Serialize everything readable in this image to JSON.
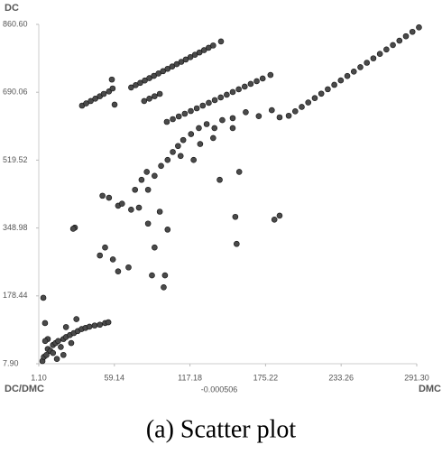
{
  "chart_data": {
    "type": "scatter",
    "y_label": "DC",
    "x_label_left": "DC/DMC",
    "x_label": "DMC",
    "x_axis_note": "-0.000506",
    "caption": "(a) Scatter plot",
    "color": "#4a4a4a",
    "edge_color": "#111111",
    "xlim": [
      1.1,
      291.3
    ],
    "xticks": [
      {
        "value": 1.1,
        "label": "1.10"
      },
      {
        "value": 59.14,
        "label": "59.14"
      },
      {
        "value": 117.18,
        "label": "117.18"
      },
      {
        "value": 175.22,
        "label": "175.22"
      },
      {
        "value": 233.26,
        "label": "233.26"
      },
      {
        "value": 291.3,
        "label": "291.30"
      }
    ],
    "ylim": [
      7.9,
      860.6
    ],
    "yticks": [
      {
        "value": 7.9,
        "label": "7.90"
      },
      {
        "value": 178.44,
        "label": "178.44"
      },
      {
        "value": 348.98,
        "label": "348.98"
      },
      {
        "value": 519.52,
        "label": "519.52"
      },
      {
        "value": 690.06,
        "label": "690.06"
      },
      {
        "value": 860.6,
        "label": "860.60"
      }
    ],
    "x": [
      34.3,
      37.5,
      41,
      44.5,
      48,
      51,
      55,
      57.8,
      57.2,
      59.3,
      72,
      75.5,
      79,
      82.5,
      86,
      89.5,
      93,
      96.5,
      100,
      103.5,
      107,
      110.5,
      114,
      117.5,
      121,
      124.5,
      128,
      131.5,
      135,
      141,
      82,
      86,
      90,
      94,
      99.4,
      104,
      108.6,
      113.2,
      117.8,
      122.4,
      127,
      131.6,
      136.2,
      140.8,
      145.4,
      150,
      154.6,
      159.2,
      163.8,
      168.4,
      173,
      179,
      193,
      198,
      203,
      208,
      213,
      218,
      223,
      228,
      233,
      238,
      243,
      248,
      253,
      258,
      263,
      268,
      273,
      278,
      283,
      288,
      293,
      75,
      80,
      84,
      90,
      95,
      100,
      104,
      108,
      112,
      118,
      124,
      130,
      136,
      142,
      150,
      160,
      170,
      180,
      186,
      85,
      110,
      125,
      135,
      150,
      50,
      55,
      62,
      65,
      72,
      78,
      85,
      100,
      94,
      48,
      52,
      58,
      70,
      88,
      98,
      97,
      152,
      153,
      182,
      186,
      28.8,
      27.5,
      4.6,
      5.9,
      120,
      155,
      140,
      90,
      62,
      3.9,
      5,
      7,
      8,
      10,
      12,
      14,
      16,
      18,
      20,
      22,
      25,
      28,
      31,
      34,
      37,
      40,
      44,
      48,
      52,
      54.5,
      8,
      12,
      20,
      15,
      26,
      30,
      22,
      6
    ],
    "values": [
      656.5,
      662,
      668,
      674,
      680,
      686,
      692,
      699.6,
      722,
      659,
      702,
      707.9,
      713.7,
      719.6,
      725.5,
      731.3,
      737.2,
      743,
      748.9,
      754.8,
      760.6,
      766.5,
      772.4,
      778.2,
      784.2,
      790,
      795.9,
      801.8,
      807.6,
      817.7,
      668,
      674,
      680,
      686,
      615.7,
      622.5,
      629.3,
      636.1,
      642.9,
      649.7,
      656.5,
      663.4,
      670.2,
      677,
      683.8,
      690.6,
      697.4,
      704.2,
      711,
      717.8,
      724.6,
      733.5,
      631,
      642.1,
      653.2,
      664.3,
      675.4,
      686.5,
      697.6,
      708.7,
      719.8,
      730.9,
      742,
      753.1,
      764.2,
      775.3,
      786.4,
      797.5,
      808.6,
      819.7,
      830.8,
      841.9,
      853,
      445,
      470,
      490,
      480,
      505,
      520,
      540,
      555,
      570,
      585,
      600,
      610,
      600,
      620,
      625,
      640,
      630,
      645,
      627,
      445,
      530,
      560,
      575,
      600,
      430,
      425,
      405,
      410,
      395,
      400,
      360,
      345,
      390,
      280,
      300,
      270,
      250,
      230,
      230,
      200,
      377,
      309,
      370,
      380,
      350,
      347,
      173.5,
      110,
      520,
      490,
      470,
      300,
      240,
      14.7,
      25,
      30,
      45,
      40,
      55,
      60,
      65,
      50,
      70,
      75,
      80,
      85,
      90,
      95,
      98,
      101,
      104,
      106,
      110,
      112,
      70,
      35,
      30,
      20,
      60,
      120,
      100,
      65
    ]
  }
}
